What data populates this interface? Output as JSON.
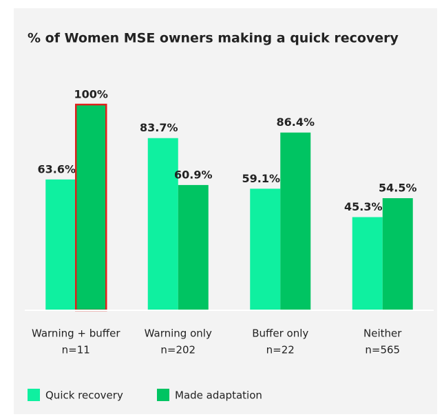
{
  "chart_data": {
    "type": "bar",
    "title": "% of Women MSE owners making a quick recovery",
    "categories": [
      "Warning + buffer",
      "Warning only",
      "Buffer only",
      "Neither"
    ],
    "sample_sizes": [
      "n=11",
      "n=202",
      "n=22",
      "n=565"
    ],
    "series": [
      {
        "name": "Quick recovery",
        "color": "#0ff0a0",
        "values": [
          63.6,
          83.7,
          59.1,
          45.3
        ],
        "value_labels": [
          "63.6%",
          "83.7%",
          "59.1%",
          "45.3%"
        ]
      },
      {
        "name": "Made adaptation",
        "color": "#00c462",
        "values": [
          100,
          60.9,
          86.4,
          54.5
        ],
        "value_labels": [
          "100%",
          "60.9%",
          "86.4%",
          "54.5%"
        ]
      }
    ],
    "highlight": {
      "series": 1,
      "index": 0,
      "color": "#e0201b"
    },
    "ylim": [
      0,
      100
    ]
  }
}
